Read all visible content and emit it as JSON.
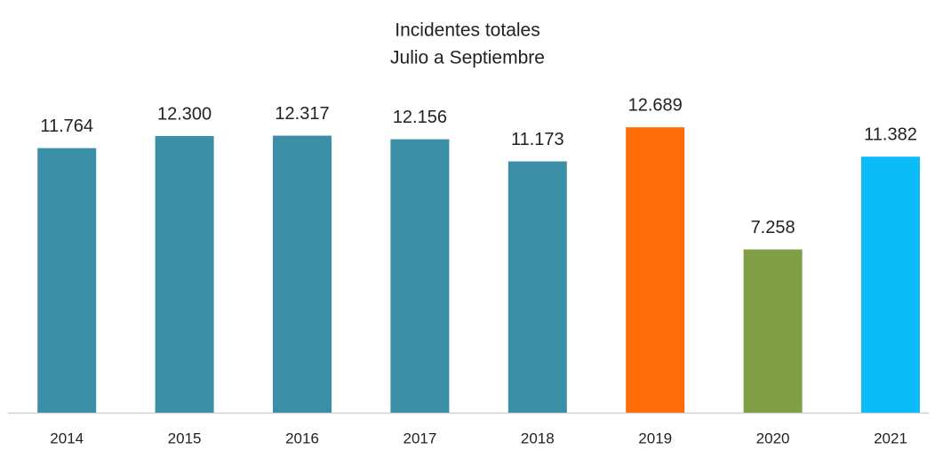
{
  "chart_data": {
    "type": "bar",
    "title": "Incidentes totales",
    "subtitle": "Julio a Septiembre",
    "categories": [
      "2014",
      "2015",
      "2016",
      "2017",
      "2018",
      "2019",
      "2020",
      "2021"
    ],
    "values": [
      11764,
      12300,
      12317,
      12156,
      11173,
      12689,
      7258,
      11382
    ],
    "value_labels": [
      "11.764",
      "12.300",
      "12.317",
      "12.156",
      "11.173",
      "12.689",
      "7.258",
      "11.382"
    ],
    "colors": [
      "#3a8fa6",
      "#3a8fa6",
      "#3a8fa6",
      "#3a8fa6",
      "#3a8fa6",
      "#ff6d0a",
      "#7f9e45",
      "#0bbcf9"
    ],
    "ylim": [
      0,
      14000
    ]
  }
}
